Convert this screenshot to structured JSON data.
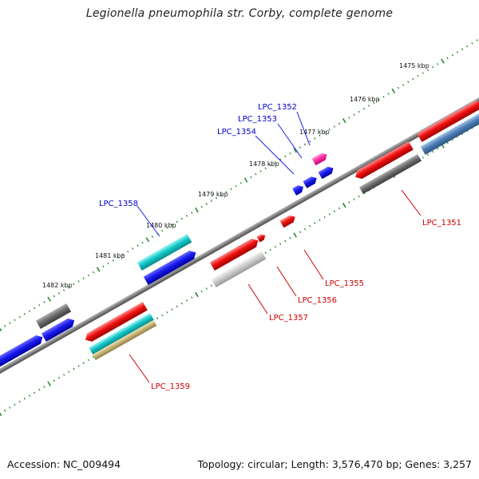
{
  "title": "Legionella pneumophila str. Corby, complete genome",
  "footer": {
    "accession": "Accession: NC_009494",
    "stats": "Topology: circular; Length: 3,576,470 bp; Genes: 3,257"
  },
  "scale_labels": [
    "1475 kbp",
    "1476 kbp",
    "1477 kbp",
    "1478 kbp",
    "1479 kbp",
    "1480 kbp",
    "1481 kbp",
    "1482 kbp"
  ],
  "genes": [
    {
      "name": "LPC_1351",
      "strand": "minus"
    },
    {
      "name": "LPC_1352",
      "strand": "plus"
    },
    {
      "name": "LPC_1353",
      "strand": "plus"
    },
    {
      "name": "LPC_1354",
      "strand": "plus"
    },
    {
      "name": "LPC_1355",
      "strand": "minus"
    },
    {
      "name": "LPC_1356",
      "strand": "minus"
    },
    {
      "name": "LPC_1357",
      "strand": "minus"
    },
    {
      "name": "LPC_1358",
      "strand": "plus"
    },
    {
      "name": "LPC_1359",
      "strand": "minus"
    }
  ],
  "colors": {
    "backbone": "#808080",
    "tick": "#2a8a2a",
    "red": "#ee1111",
    "blue": "#1a1aee",
    "cyan": "#14c8c8",
    "gray": "#777777",
    "lightgray": "#c8c8c8",
    "steelblue": "#4f7fb6",
    "olive": "#c8b478",
    "magenta": "#ff2fa6",
    "label_plus": "#0000cc",
    "label_minus": "#cc0000"
  }
}
